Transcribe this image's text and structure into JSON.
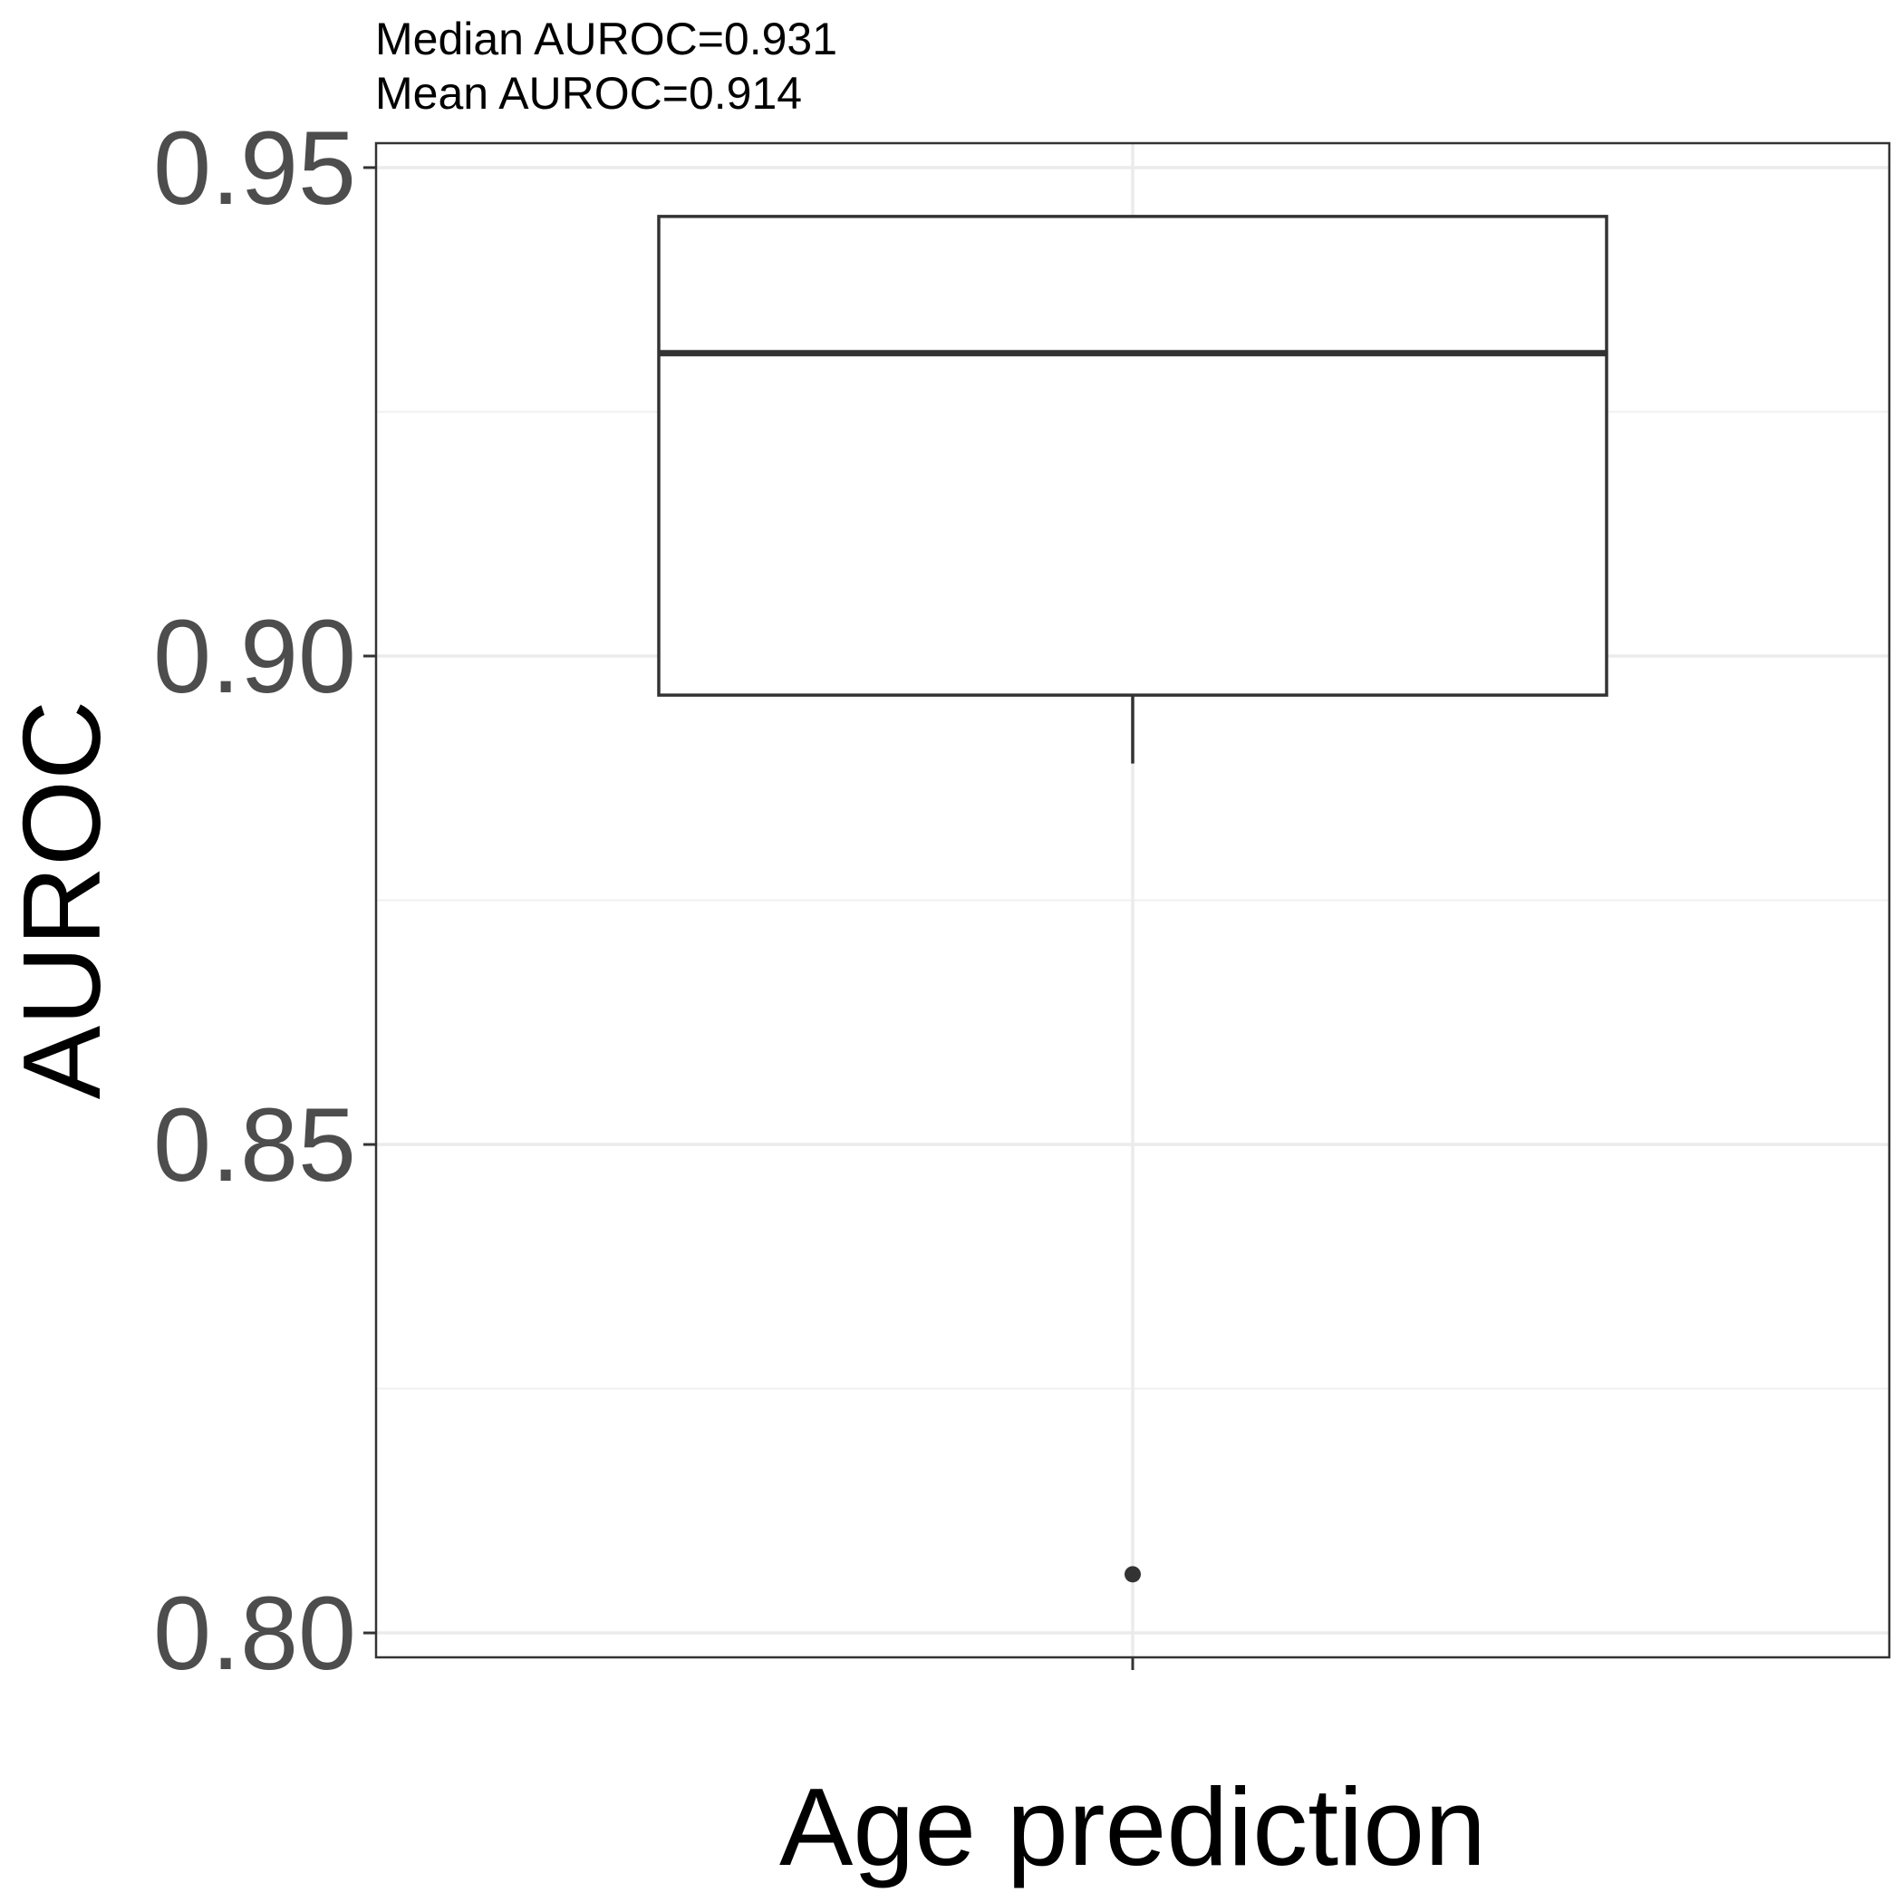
{
  "chart_data": {
    "type": "box",
    "subtitle_lines": [
      "Median AUROC=0.931",
      "Mean AUROC=0.914"
    ],
    "xlabel": "",
    "ylabel": "AUROC",
    "categories": [
      "Age prediction"
    ],
    "ylim": [
      0.7975,
      0.9525
    ],
    "yticks": [
      0.8,
      0.85,
      0.9,
      0.95
    ],
    "ytick_labels": [
      "0.80",
      "0.85",
      "0.90",
      "0.95"
    ],
    "grid": true,
    "boxes": [
      {
        "category": "Age prediction",
        "q1": 0.896,
        "median": 0.931,
        "q3": 0.945,
        "whisker_low": 0.889,
        "whisker_high": 0.945,
        "outliers": [
          0.806
        ]
      }
    ]
  }
}
